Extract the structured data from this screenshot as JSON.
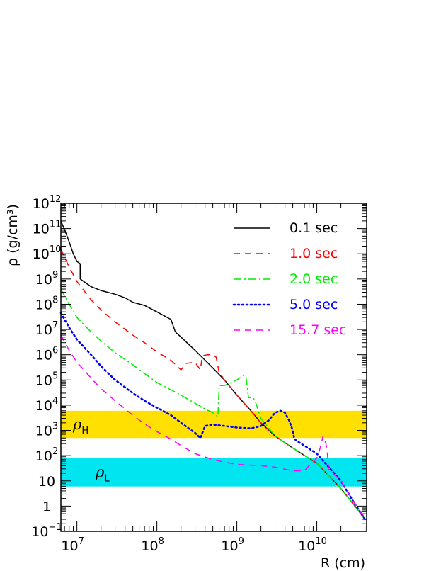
{
  "chart_data": {
    "type": "line",
    "xlabel": "R (cm)",
    "ylabel": "ρ (g/cm³)",
    "x_scale": "log",
    "y_scale": "log",
    "xlim": [
      6300000.0,
      42000000000.0
    ],
    "ylim": [
      0.1,
      1000000000000.0
    ],
    "grid": false,
    "legend_position": "top-right",
    "x_ticks": [
      {
        "value": 10000000.0,
        "base": "10",
        "exp": "7"
      },
      {
        "value": 100000000.0,
        "base": "10",
        "exp": "8"
      },
      {
        "value": 1000000000.0,
        "base": "10",
        "exp": "9"
      },
      {
        "value": 10000000000.0,
        "base": "10",
        "exp": "10"
      }
    ],
    "y_ticks": [
      {
        "value": 0.1,
        "base": "10",
        "exp": "−1"
      },
      {
        "value": 1,
        "base": "1",
        "exp": ""
      },
      {
        "value": 10,
        "base": "10",
        "exp": ""
      },
      {
        "value": 100,
        "base": "10",
        "exp": "2"
      },
      {
        "value": 1000.0,
        "base": "10",
        "exp": "3"
      },
      {
        "value": 10000.0,
        "base": "10",
        "exp": "4"
      },
      {
        "value": 100000.0,
        "base": "10",
        "exp": "5"
      },
      {
        "value": 1000000.0,
        "base": "10",
        "exp": "6"
      },
      {
        "value": 10000000.0,
        "base": "10",
        "exp": "7"
      },
      {
        "value": 100000000.0,
        "base": "10",
        "exp": "8"
      },
      {
        "value": 1000000000.0,
        "base": "10",
        "exp": "9"
      },
      {
        "value": 10000000000.0,
        "base": "10",
        "exp": "10"
      },
      {
        "value": 100000000000.0,
        "base": "10",
        "exp": "11"
      },
      {
        "value": 1000000000000.0,
        "base": "10",
        "exp": "12"
      }
    ],
    "bands": [
      {
        "label": "ρ",
        "sub": "H",
        "ymin": 500,
        "ymax": 6000,
        "color": "#ffe000"
      },
      {
        "label": "ρ",
        "sub": "L",
        "ymin": 6,
        "ymax": 80,
        "color": "#00e5f0"
      }
    ],
    "series": [
      {
        "name": "0.1 sec",
        "color": "#000000",
        "dash": "solid",
        "x": [
          6300000.0,
          7000000.0,
          8000000.0,
          9000000.0,
          10000000.0,
          11000000.0,
          11000000.0,
          15000000.0,
          20000000.0,
          30000000.0,
          40000000.0,
          50000000.0,
          70000000.0,
          100000000.0,
          150000000.0,
          170000000.0,
          200000000.0,
          300000000.0,
          500000000.0,
          700000000.0,
          1000000000.0,
          1500000000.0,
          2000000000.0,
          3000000000.0,
          5000000000.0,
          10000000000.0,
          20000000000.0,
          30000000000.0,
          40000000000.0
        ],
        "y": [
          200000000000.0,
          90000000000.0,
          30000000000.0,
          10000000000.0,
          5000000000.0,
          4000000000.0,
          1000000000.0,
          500000000.0,
          350000000.0,
          250000000.0,
          180000000.0,
          120000000.0,
          90000000.0,
          50000000.0,
          25000000.0,
          8000000.0,
          5000000.0,
          1500000.0,
          300000.0,
          100000.0,
          25000.0,
          6000.0,
          2000.0,
          600,
          200,
          50,
          5,
          1,
          0.3
        ]
      },
      {
        "name": "1.0 sec",
        "color": "#ff0000",
        "dash": "dashed",
        "x": [
          6300000.0,
          8000000.0,
          10000000.0,
          15000000.0,
          20000000.0,
          30000000.0,
          50000000.0,
          70000000.0,
          100000000.0,
          150000000.0,
          200000000.0,
          230000000.0,
          300000000.0,
          350000000.0,
          370000000.0,
          430000000.0,
          500000000.0,
          550000000.0,
          600000000.0,
          650000000.0,
          700000000.0,
          1000000000.0,
          1500000000.0,
          2000000000.0,
          3000000000.0,
          5000000000.0,
          10000000000.0,
          20000000000.0,
          30000000000.0,
          40000000000.0
        ],
        "y": [
          15000000000.0,
          3000000000.0,
          800000000.0,
          150000000.0,
          60000000.0,
          20000000.0,
          6000000.0,
          3000000.0,
          1300000.0,
          600000.0,
          250000.0,
          450000.0,
          500000.0,
          250000.0,
          900000.0,
          1000000.0,
          1000000.0,
          800000.0,
          200000.0,
          140000.0,
          100000.0,
          25000.0,
          6000.0,
          2000.0,
          600,
          200,
          50,
          5,
          1,
          0.3
        ]
      },
      {
        "name": "2.0 sec",
        "color": "#00ee00",
        "dash": "dashdot",
        "x": [
          6300000.0,
          8000000.0,
          10000000.0,
          15000000.0,
          20000000.0,
          30000000.0,
          50000000.0,
          70000000.0,
          100000000.0,
          200000000.0,
          300000000.0,
          400000000.0,
          500000000.0,
          580000000.0,
          600000000.0,
          700000000.0,
          1000000000.0,
          1200000000.0,
          1300000000.0,
          1400000000.0,
          1600000000.0,
          1700000000.0,
          2000000000.0,
          3000000000.0,
          5000000000.0,
          10000000000.0,
          20000000000.0,
          30000000000.0,
          40000000000.0
        ],
        "y": [
          400000000.0,
          100000000.0,
          30000000.0,
          8000000.0,
          3500000.0,
          1200000.0,
          400000.0,
          180000.0,
          80000.0,
          25000.0,
          12000.0,
          7000.0,
          5000.0,
          3500.0,
          60000.0,
          60000.0,
          100000.0,
          150000.0,
          130000.0,
          20000.0,
          20000.0,
          14000.0,
          3000.0,
          600,
          200,
          50,
          5,
          1,
          0.3
        ]
      },
      {
        "name": "5.0 sec",
        "color": "#0000ff",
        "dash": "dotted",
        "x": [
          6300000.0,
          8000000.0,
          10000000.0,
          15000000.0,
          20000000.0,
          30000000.0,
          50000000.0,
          70000000.0,
          100000000.0,
          150000000.0,
          200000000.0,
          300000000.0,
          350000000.0,
          400000000.0,
          500000000.0,
          700000000.0,
          1000000000.0,
          1500000000.0,
          2000000000.0,
          2500000000.0,
          3000000000.0,
          3500000000.0,
          4000000000.0,
          4500000000.0,
          5000000000.0,
          5200000000.0,
          5500000000.0,
          10000000000.0,
          20000000000.0,
          30000000000.0,
          40000000000.0
        ],
        "y": [
          45000000.0,
          12000000.0,
          4000000.0,
          1000000.0,
          350000.0,
          100000.0,
          30000.0,
          15000.0,
          8000.0,
          4000.0,
          2000.0,
          800,
          500,
          1500.0,
          1700.0,
          1500.0,
          1300.0,
          1200.0,
          1500.0,
          2500.0,
          5000.0,
          6000.0,
          5000.0,
          2500.0,
          1000.0,
          500,
          400,
          120,
          10,
          1.2,
          0.3
        ]
      },
      {
        "name": "15.7 sec",
        "color": "#ff00ff",
        "dash": "dashed",
        "x": [
          6300000.0,
          8000000.0,
          10000000.0,
          15000000.0,
          20000000.0,
          30000000.0,
          50000000.0,
          70000000.0,
          100000000.0,
          150000000.0,
          200000000.0,
          300000000.0,
          500000000.0,
          700000000.0,
          1000000000.0,
          2000000000.0,
          3000000000.0,
          5000000000.0,
          7000000000.0,
          8000000000.0,
          10000000000.0,
          11000000000.0,
          12000000000.0,
          13000000000.0,
          13500000000.0,
          14000000000.0,
          20000000000.0,
          30000000000.0,
          40000000000.0
        ],
        "y": [
          6000000.0,
          1500000.0,
          500000.0,
          120000.0,
          45000.0,
          15000.0,
          4000.0,
          1800.0,
          900,
          450,
          250,
          120,
          70,
          55,
          45,
          40,
          35,
          25,
          25,
          40,
          80,
          200,
          600,
          300,
          150,
          30,
          10,
          1.2,
          0.35
        ]
      }
    ]
  }
}
